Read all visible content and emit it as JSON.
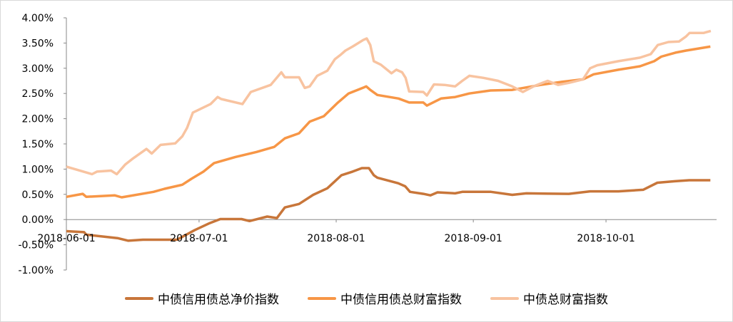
{
  "chart_data": {
    "type": "line",
    "title": "",
    "xlabel": "",
    "ylabel": "",
    "x_unit": "days since 2018-06-01",
    "xlim": [
      0,
      147
    ],
    "ylim": [
      -1.0,
      4.0
    ],
    "grid": false,
    "legend_position": "bottom",
    "x_ticks": [
      {
        "day": 0,
        "label": "2018-06-01"
      },
      {
        "day": 30,
        "label": "2018-07-01"
      },
      {
        "day": 61,
        "label": "2018-08-01"
      },
      {
        "day": 92,
        "label": "2018-09-01"
      },
      {
        "day": 122,
        "label": "2018-10-01"
      }
    ],
    "y_ticks": [
      {
        "value": 4.0,
        "label": "4.00%"
      },
      {
        "value": 3.5,
        "label": "3.50%"
      },
      {
        "value": 3.0,
        "label": "3.00%"
      },
      {
        "value": 2.5,
        "label": "2.50%"
      },
      {
        "value": 2.0,
        "label": "2.00%"
      },
      {
        "value": 1.5,
        "label": "1.50%"
      },
      {
        "value": 1.0,
        "label": "1.00%"
      },
      {
        "value": 0.5,
        "label": "0.50%"
      },
      {
        "value": 0.0,
        "label": "0.00%"
      },
      {
        "value": -0.5,
        "label": "-0.50%"
      },
      {
        "value": -1.0,
        "label": "-1.00%"
      }
    ],
    "series": [
      {
        "name": "中债信用债总净价指数",
        "color": "#C8763A",
        "points": [
          [
            0,
            -0.23
          ],
          [
            4,
            -0.25
          ],
          [
            4.5,
            -0.3
          ],
          [
            11.7,
            -0.37
          ],
          [
            14,
            -0.42
          ],
          [
            17.3,
            -0.4
          ],
          [
            25,
            -0.4
          ],
          [
            29,
            -0.21
          ],
          [
            32.4,
            -0.07
          ],
          [
            34.8,
            0.01
          ],
          [
            39.6,
            0.01
          ],
          [
            41.4,
            -0.03
          ],
          [
            45.4,
            0.06
          ],
          [
            47.6,
            0.03
          ],
          [
            49.4,
            0.24
          ],
          [
            52.6,
            0.31
          ],
          [
            55.8,
            0.49
          ],
          [
            59,
            0.62
          ],
          [
            62.2,
            0.88
          ],
          [
            64.7,
            0.95
          ],
          [
            66.8,
            1.02
          ],
          [
            68.4,
            1.02
          ],
          [
            69.5,
            0.88
          ],
          [
            70.3,
            0.83
          ],
          [
            75,
            0.72
          ],
          [
            76.6,
            0.66
          ],
          [
            77.7,
            0.55
          ],
          [
            80.7,
            0.51
          ],
          [
            82.3,
            0.48
          ],
          [
            83.9,
            0.54
          ],
          [
            87.9,
            0.52
          ],
          [
            89.5,
            0.55
          ],
          [
            96,
            0.55
          ],
          [
            100.8,
            0.49
          ],
          [
            104,
            0.52
          ],
          [
            113.6,
            0.51
          ],
          [
            118.4,
            0.56
          ],
          [
            124.8,
            0.56
          ],
          [
            130.4,
            0.59
          ],
          [
            133.6,
            0.73
          ],
          [
            137.6,
            0.76
          ],
          [
            140.8,
            0.78
          ],
          [
            145.6,
            0.78
          ]
        ]
      },
      {
        "name": "中债信用债总财富指数",
        "color": "#F79646",
        "points": [
          [
            0,
            0.45
          ],
          [
            3.7,
            0.51
          ],
          [
            4.5,
            0.45
          ],
          [
            10.9,
            0.48
          ],
          [
            12.5,
            0.44
          ],
          [
            19.7,
            0.55
          ],
          [
            22.2,
            0.61
          ],
          [
            26.2,
            0.69
          ],
          [
            28.3,
            0.81
          ],
          [
            31,
            0.95
          ],
          [
            33.4,
            1.12
          ],
          [
            38.2,
            1.24
          ],
          [
            43,
            1.34
          ],
          [
            47,
            1.44
          ],
          [
            49.4,
            1.61
          ],
          [
            52.6,
            1.71
          ],
          [
            55,
            1.94
          ],
          [
            58.2,
            2.05
          ],
          [
            61.4,
            2.32
          ],
          [
            63.8,
            2.5
          ],
          [
            67,
            2.61
          ],
          [
            67.8,
            2.64
          ],
          [
            68.7,
            2.57
          ],
          [
            70.3,
            2.47
          ],
          [
            75.1,
            2.4
          ],
          [
            77.5,
            2.32
          ],
          [
            80.7,
            2.32
          ],
          [
            81.5,
            2.26
          ],
          [
            84.7,
            2.4
          ],
          [
            87.9,
            2.43
          ],
          [
            91.1,
            2.5
          ],
          [
            95.9,
            2.56
          ],
          [
            100.8,
            2.57
          ],
          [
            107.2,
            2.67
          ],
          [
            112,
            2.73
          ],
          [
            116.8,
            2.78
          ],
          [
            119.2,
            2.88
          ],
          [
            124.8,
            2.97
          ],
          [
            129.7,
            3.04
          ],
          [
            132.9,
            3.14
          ],
          [
            134.5,
            3.23
          ],
          [
            137.7,
            3.31
          ],
          [
            140.1,
            3.35
          ],
          [
            145.6,
            3.43
          ]
        ]
      },
      {
        "name": "中债总财富指数",
        "color": "#F8C3A0",
        "points": [
          [
            0,
            1.05
          ],
          [
            5.8,
            0.9
          ],
          [
            6.9,
            0.95
          ],
          [
            10.1,
            0.97
          ],
          [
            11.4,
            0.9
          ],
          [
            13.3,
            1.09
          ],
          [
            14.9,
            1.2
          ],
          [
            18.1,
            1.4
          ],
          [
            19.3,
            1.31
          ],
          [
            21.3,
            1.48
          ],
          [
            24.6,
            1.51
          ],
          [
            26.2,
            1.65
          ],
          [
            27.3,
            1.82
          ],
          [
            28.6,
            2.12
          ],
          [
            32.6,
            2.29
          ],
          [
            34.2,
            2.43
          ],
          [
            35,
            2.39
          ],
          [
            39.8,
            2.29
          ],
          [
            41.7,
            2.53
          ],
          [
            46.2,
            2.67
          ],
          [
            48.6,
            2.92
          ],
          [
            49.4,
            2.82
          ],
          [
            52.6,
            2.82
          ],
          [
            53.9,
            2.61
          ],
          [
            55,
            2.64
          ],
          [
            56.7,
            2.85
          ],
          [
            59,
            2.95
          ],
          [
            60.7,
            3.18
          ],
          [
            61.9,
            3.26
          ],
          [
            63.1,
            3.35
          ],
          [
            64.7,
            3.43
          ],
          [
            67.1,
            3.56
          ],
          [
            67.9,
            3.59
          ],
          [
            68.7,
            3.46
          ],
          [
            69.5,
            3.14
          ],
          [
            71.1,
            3.07
          ],
          [
            73.5,
            2.9
          ],
          [
            74.6,
            2.97
          ],
          [
            75.9,
            2.92
          ],
          [
            76.7,
            2.81
          ],
          [
            77.5,
            2.54
          ],
          [
            80.7,
            2.53
          ],
          [
            81.5,
            2.46
          ],
          [
            83.1,
            2.68
          ],
          [
            85.5,
            2.67
          ],
          [
            87.9,
            2.64
          ],
          [
            89.5,
            2.75
          ],
          [
            91.1,
            2.85
          ],
          [
            94.3,
            2.81
          ],
          [
            97.6,
            2.75
          ],
          [
            100.8,
            2.64
          ],
          [
            103.2,
            2.53
          ],
          [
            105.6,
            2.64
          ],
          [
            108.8,
            2.75
          ],
          [
            111.2,
            2.67
          ],
          [
            113.6,
            2.71
          ],
          [
            116.8,
            2.78
          ],
          [
            118.4,
            3.0
          ],
          [
            120,
            3.06
          ],
          [
            124.8,
            3.14
          ],
          [
            129.7,
            3.21
          ],
          [
            132.1,
            3.28
          ],
          [
            133.7,
            3.46
          ],
          [
            136.1,
            3.52
          ],
          [
            138.5,
            3.53
          ],
          [
            140.1,
            3.63
          ],
          [
            140.9,
            3.7
          ],
          [
            144.1,
            3.7
          ],
          [
            145.7,
            3.74
          ]
        ]
      }
    ]
  }
}
